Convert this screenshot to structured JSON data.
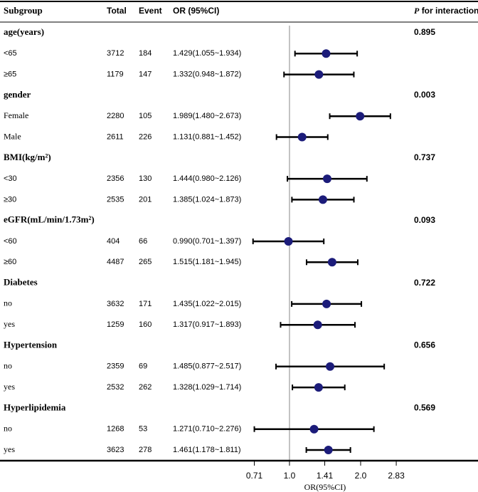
{
  "chart_data": {
    "type": "forest",
    "header": {
      "subgroup": "Subgroup",
      "total": "Total",
      "event": "Event",
      "or": "OR (95%CI)",
      "p_italic": "P",
      "p_rest": "for interaction"
    },
    "groups": [
      {
        "name": "age(years)",
        "p": 0.895,
        "rows": [
          {
            "label": "<65",
            "total": 3712,
            "event": 184,
            "or_text": "1.429(1.055~1.934)",
            "or": 1.429,
            "lower": 1.055,
            "upper": 1.934
          },
          {
            "label": "≥65",
            "total": 1179,
            "event": 147,
            "or_text": "1.332(0.948~1.872)",
            "or": 1.332,
            "lower": 0.948,
            "upper": 1.872
          }
        ]
      },
      {
        "name": "gender",
        "p": 0.003,
        "rows": [
          {
            "label": "Female",
            "total": 2280,
            "event": 105,
            "or_text": "1.989(1.480~2.673)",
            "or": 1.989,
            "lower": 1.48,
            "upper": 2.673
          },
          {
            "label": "Male",
            "total": 2611,
            "event": 226,
            "or_text": "1.131(0.881~1.452)",
            "or": 1.131,
            "lower": 0.881,
            "upper": 1.452
          }
        ]
      },
      {
        "name": "BMI(kg/m²)",
        "p": 0.737,
        "rows": [
          {
            "label": "<30",
            "total": 2356,
            "event": 130,
            "or_text": "1.444(0.980~2.126)",
            "or": 1.444,
            "lower": 0.98,
            "upper": 2.126
          },
          {
            "label": "≥30",
            "total": 2535,
            "event": 201,
            "or_text": "1.385(1.024~1.873)",
            "or": 1.385,
            "lower": 1.024,
            "upper": 1.873
          }
        ]
      },
      {
        "name": "eGFR(mL/min/1.73m²)",
        "p": 0.093,
        "rows": [
          {
            "label": "<60",
            "total": 404,
            "event": 66,
            "or_text": "0.990(0.701~1.397)",
            "or": 0.99,
            "lower": 0.701,
            "upper": 1.397
          },
          {
            "label": "≥60",
            "total": 4487,
            "event": 265,
            "or_text": "1.515(1.181~1.945)",
            "or": 1.515,
            "lower": 1.181,
            "upper": 1.945
          }
        ]
      },
      {
        "name": "Diabetes",
        "p": 0.722,
        "rows": [
          {
            "label": "no",
            "total": 3632,
            "event": 171,
            "or_text": "1.435(1.022~2.015)",
            "or": 1.435,
            "lower": 1.022,
            "upper": 2.015
          },
          {
            "label": "yes",
            "total": 1259,
            "event": 160,
            "or_text": "1.317(0.917~1.893)",
            "or": 1.317,
            "lower": 0.917,
            "upper": 1.893
          }
        ]
      },
      {
        "name": "Hypertension",
        "p": 0.656,
        "rows": [
          {
            "label": "no",
            "total": 2359,
            "event": 69,
            "or_text": "1.485(0.877~2.517)",
            "or": 1.485,
            "lower": 0.877,
            "upper": 2.517
          },
          {
            "label": "yes",
            "total": 2532,
            "event": 262,
            "or_text": "1.328(1.029~1.714)",
            "or": 1.328,
            "lower": 1.029,
            "upper": 1.714
          }
        ]
      },
      {
        "name": "Hyperlipidemia",
        "p": 0.569,
        "rows": [
          {
            "label": "no",
            "total": 1268,
            "event": 53,
            "or_text": "1.271(0.710~2.276)",
            "or": 1.271,
            "lower": 0.71,
            "upper": 2.276
          },
          {
            "label": "yes",
            "total": 3623,
            "event": 278,
            "or_text": "1.461(1.178~1.811)",
            "or": 1.461,
            "lower": 1.178,
            "upper": 1.811
          }
        ]
      }
    ],
    "xlabel": "OR(95%CI)",
    "xscale": "log",
    "xlim": [
      0.7,
      2.9
    ],
    "xticks": [
      0.71,
      {
        "value": 1,
        "label": "1.0"
      },
      1.41,
      {
        "value": 2,
        "label": "2.0"
      },
      2.83
    ],
    "reference": 1,
    "marker_color": "#1c1c7a",
    "ci_color": "#000000",
    "reference_color": "#b0b0b0"
  }
}
